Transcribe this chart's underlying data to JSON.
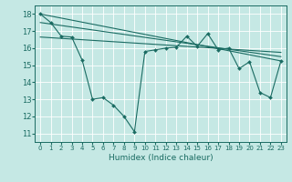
{
  "xlabel": "Humidex (Indice chaleur)",
  "xlim": [
    -0.5,
    23.5
  ],
  "ylim": [
    10.5,
    18.5
  ],
  "xticks": [
    0,
    1,
    2,
    3,
    4,
    5,
    6,
    7,
    8,
    9,
    10,
    11,
    12,
    13,
    14,
    15,
    16,
    17,
    18,
    19,
    20,
    21,
    22,
    23
  ],
  "yticks": [
    11,
    12,
    13,
    14,
    15,
    16,
    17,
    18
  ],
  "bg_color": "#c5e8e4",
  "line_color": "#1a6b62",
  "grid_color": "#ffffff",
  "main_x": [
    0,
    1,
    2,
    3,
    4,
    5,
    6,
    7,
    8,
    9,
    10,
    11,
    12,
    13,
    14,
    15,
    16,
    17,
    18,
    19,
    20,
    21,
    22,
    23
  ],
  "main_y": [
    18.0,
    17.5,
    16.7,
    16.65,
    15.3,
    13.0,
    13.1,
    12.65,
    12.0,
    11.1,
    15.8,
    15.9,
    16.0,
    16.05,
    16.7,
    16.1,
    16.85,
    15.9,
    16.0,
    14.8,
    15.2,
    13.4,
    13.1,
    15.25
  ],
  "reg_lines": [
    {
      "x0": 0,
      "y0": 18.0,
      "x1": 23,
      "y1": 15.25
    },
    {
      "x0": 0,
      "y0": 17.5,
      "x1": 23,
      "y1": 15.5
    },
    {
      "x0": 0,
      "y0": 16.65,
      "x1": 23,
      "y1": 15.75
    }
  ]
}
